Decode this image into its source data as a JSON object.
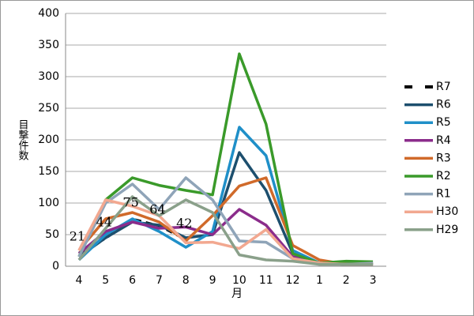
{
  "chart_data": {
    "type": "line",
    "xlabel": "月",
    "ylabel": "目撃件数",
    "categories": [
      "4",
      "5",
      "6",
      "7",
      "8",
      "9",
      "10",
      "11",
      "12",
      "1",
      "2",
      "3"
    ],
    "ylim": [
      0,
      400
    ],
    "yticks": [
      0,
      50,
      100,
      150,
      200,
      250,
      300,
      350,
      400
    ],
    "grid": true,
    "legend": "right",
    "series": [
      {
        "name": "R7",
        "color": "#000000",
        "style": "dashed",
        "show_labels": true,
        "values": [
          21,
          44,
          75,
          64,
          42,
          null,
          null,
          null,
          null,
          null,
          null,
          null
        ]
      },
      {
        "name": "R6",
        "color": "#1d4f6e",
        "values": [
          15,
          45,
          70,
          65,
          45,
          50,
          180,
          120,
          20,
          5,
          3,
          5
        ]
      },
      {
        "name": "R5",
        "color": "#1f8fc8",
        "values": [
          10,
          50,
          75,
          55,
          30,
          55,
          220,
          175,
          25,
          5,
          3,
          5
        ]
      },
      {
        "name": "R4",
        "color": "#8b2c8b",
        "values": [
          20,
          55,
          70,
          60,
          62,
          50,
          90,
          65,
          15,
          5,
          3,
          3
        ]
      },
      {
        "name": "R3",
        "color": "#d06a2a",
        "values": [
          25,
          75,
          85,
          70,
          40,
          80,
          127,
          140,
          33,
          10,
          3,
          3
        ]
      },
      {
        "name": "R2",
        "color": "#3a9a2a",
        "values": [
          15,
          105,
          140,
          128,
          120,
          113,
          336,
          225,
          20,
          5,
          8,
          7
        ]
      },
      {
        "name": "R1",
        "color": "#8fa4b8",
        "values": [
          15,
          100,
          130,
          90,
          140,
          105,
          40,
          38,
          12,
          5,
          3,
          5
        ]
      },
      {
        "name": "H30",
        "color": "#f2a890",
        "values": [
          25,
          105,
          95,
          80,
          37,
          38,
          28,
          58,
          12,
          5,
          3,
          3
        ]
      },
      {
        "name": "H29",
        "color": "#8aa08a",
        "values": [
          10,
          60,
          110,
          80,
          105,
          85,
          18,
          10,
          8,
          3,
          3,
          3
        ]
      }
    ]
  }
}
